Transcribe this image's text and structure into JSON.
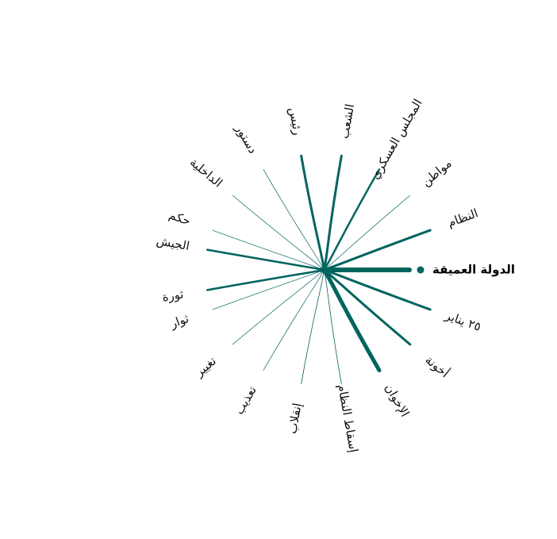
{
  "colors": {
    "edge": "#00645f",
    "text": "#111111"
  },
  "chart_data": {
    "type": "radial-network",
    "center": {
      "label": "الدولة العميقة"
    },
    "nodes": [
      {
        "label": "النظام",
        "angle_deg": 20,
        "weight": 3
      },
      {
        "label": "مواطن",
        "angle_deg": 40,
        "weight": 0.7
      },
      {
        "label": "المجلس العسكري",
        "angle_deg": 60,
        "weight": 2.5
      },
      {
        "label": "الشعب",
        "angle_deg": 80,
        "weight": 3
      },
      {
        "label": "رئيس",
        "angle_deg": 100,
        "weight": 3
      },
      {
        "label": "دستور",
        "angle_deg": 120,
        "weight": 0.7
      },
      {
        "label": "الداخلية",
        "angle_deg": 140,
        "weight": 0.7
      },
      {
        "label": "حكم",
        "angle_deg": 160,
        "weight": 0.7
      },
      {
        "label": "الجيش",
        "angle_deg": 170,
        "weight": 2.5
      },
      {
        "label": "ثورة",
        "angle_deg": 190,
        "weight": 2.5
      },
      {
        "label": "ثوار",
        "angle_deg": 200,
        "weight": 0.7
      },
      {
        "label": "تغيير",
        "angle_deg": 220,
        "weight": 0.7
      },
      {
        "label": "تعذيب",
        "angle_deg": 240,
        "weight": 0.7
      },
      {
        "label": "إنقلاب",
        "angle_deg": 260,
        "weight": 0.8
      },
      {
        "label": "إسقاط النظام",
        "angle_deg": 280,
        "weight": 0.8
      },
      {
        "label": "الإخوان",
        "angle_deg": 300,
        "weight": 5
      },
      {
        "label": "أخونة",
        "angle_deg": 320,
        "weight": 3
      },
      {
        "label": "٢٥ يناير",
        "angle_deg": 340,
        "weight": 3
      }
    ]
  }
}
